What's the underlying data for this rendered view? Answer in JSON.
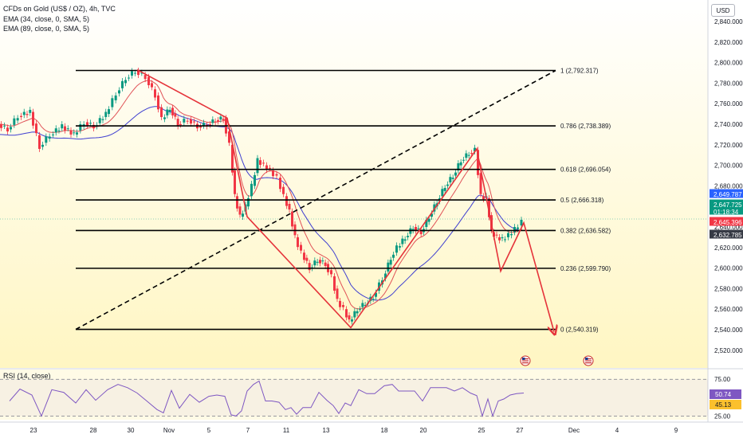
{
  "header": {
    "symbol_line": "CFDs on Gold (US$ / OZ), 4h, TVC",
    "ema1_line": "EMA (34, close, 0, SMA, 5)",
    "ema2_line": "EMA (89, close, 0, SMA, 5)",
    "currency": "USD"
  },
  "rsi_panel": {
    "label": "RSI (14, close)",
    "ticks": [
      "75.00",
      "25.00"
    ],
    "value_labels": [
      "50.74",
      "45.13"
    ],
    "values": [
      50.74,
      45.13
    ]
  },
  "price_labels": {
    "values": [
      "2,649.787",
      "2,647.725",
      "01:18:34",
      "2,645.396",
      "2,632.785"
    ],
    "colors": [
      "#2962ff",
      "#089981",
      "#089981",
      "#f23645",
      "#363a45"
    ]
  },
  "colors": {
    "fib_line": "#000000",
    "trend_arrow": "#e5333a",
    "ema34": "#e05257",
    "ema89": "#3f3fd0",
    "candle_up": "#089981",
    "candle_down": "#f23645",
    "rsi_line": "#7e57c2",
    "background_top": "#ffffff",
    "background_bottom": "#fff6c2"
  },
  "chart_data": {
    "type": "candlestick",
    "title": "CFDs on Gold (US$ / OZ), 4h, TVC",
    "ylim": [
      2510,
      2850
    ],
    "y_ticks": [
      "2,520.000",
      "2,540.000",
      "2,560.000",
      "2,580.000",
      "2,600.000",
      "2,620.000",
      "2,640.000",
      "2,660.000",
      "2,680.000",
      "2,700.000",
      "2,720.000",
      "2,740.000",
      "2,760.000",
      "2,780.000",
      "2,800.000",
      "2,820.000",
      "2,840.000"
    ],
    "x_ticks": [
      "23",
      "28",
      "30",
      "Nov",
      "5",
      "7",
      "11",
      "13",
      "18",
      "20",
      "25",
      "27",
      "Dec",
      "4",
      "9"
    ],
    "fib_levels": [
      {
        "label": "1 (2,792.317)",
        "value": 2792.317
      },
      {
        "label": "0.786 (2,738.389)",
        "value": 2738.389
      },
      {
        "label": "0.618 (2,696.054)",
        "value": 2696.054
      },
      {
        "label": "0.5 (2,666.318)",
        "value": 2666.318
      },
      {
        "label": "0.382 (2,636.582)",
        "value": 2636.582
      },
      {
        "label": "0.236 (2,599.790)",
        "value": 2599.79
      },
      {
        "label": "0 (2,540.319)",
        "value": 2540.319
      }
    ],
    "grid": false,
    "legend": "top-left"
  }
}
